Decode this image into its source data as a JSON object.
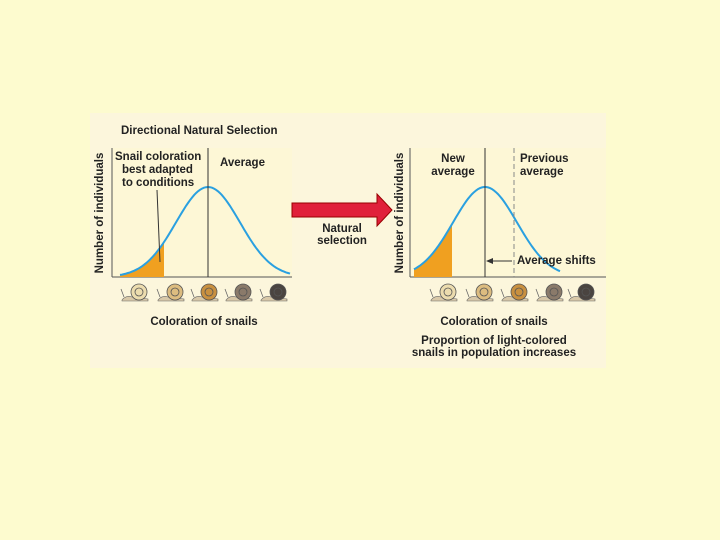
{
  "figure": {
    "title": "Directional Natural Selection",
    "left": {
      "y_label": "Number of individuals",
      "annotation_lines": [
        "Snail coloration",
        "best adapted",
        "to conditions"
      ],
      "average_label": "Average",
      "x_label": "Coloration of snails"
    },
    "arrow_label_lines": [
      "Natural",
      "selection"
    ],
    "right": {
      "y_label": "Number of individuals",
      "new_average_lines": [
        "New",
        "average"
      ],
      "previous_average_lines": [
        "Previous",
        "average"
      ],
      "shift_label": "Average shifts",
      "x_label": "Coloration of snails",
      "caption_lines": [
        "Proportion of light-colored",
        "snails in population increases"
      ]
    }
  }
}
